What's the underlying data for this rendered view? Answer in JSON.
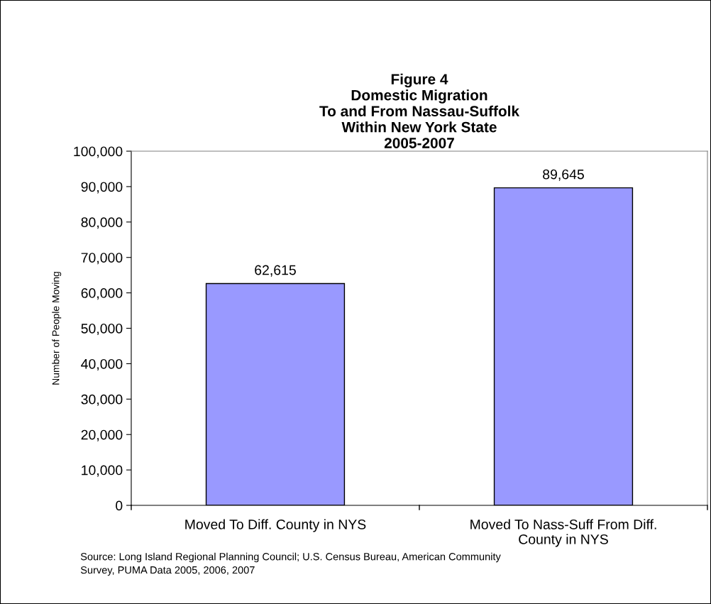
{
  "chart_data": {
    "type": "bar",
    "title": "Figure 4\nDomestic Migration\nTo and From Nassau-Suffolk\nWithin New York State\n2005-2007",
    "ylabel": "Number of People Moving",
    "categories": [
      "Moved To Diff. County in NYS",
      "Moved To Nass-Suff From Diff.\nCounty in NYS"
    ],
    "values": [
      62615,
      89645
    ],
    "color": "#9999ff",
    "ylim": [
      0,
      100000
    ],
    "yticks": [
      {
        "value": 0,
        "label": "0"
      },
      {
        "value": 10000,
        "label": "10,000"
      },
      {
        "value": 20000,
        "label": "20,000"
      },
      {
        "value": 30000,
        "label": "30,000"
      },
      {
        "value": 40000,
        "label": "40,000"
      },
      {
        "value": 50000,
        "label": "50,000"
      },
      {
        "value": 60000,
        "label": "60,000"
      },
      {
        "value": 70000,
        "label": "70,000"
      },
      {
        "value": 80000,
        "label": "80,000"
      },
      {
        "value": 90000,
        "label": "90,000"
      },
      {
        "value": 100000,
        "label": "100,000"
      }
    ],
    "value_labels": [
      "62,615",
      "89,645"
    ],
    "grid": false,
    "legend": false,
    "annotations": [
      "Source: Long Island Regional Planning Council; U.S. Census Bureau, American Community\nSurvey, PUMA Data 2005, 2006, 2007"
    ]
  }
}
